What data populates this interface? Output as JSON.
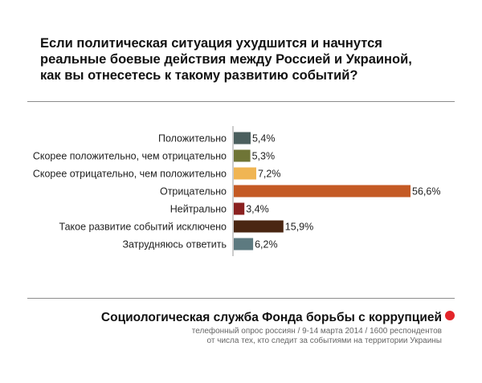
{
  "title_lines": [
    "Если политическая ситуация ухудшится и начнутся",
    "реальные боевые действия между Россией и Украиной,",
    "как вы отнесетесь к такому развитию событий?"
  ],
  "chart_data": {
    "type": "bar",
    "orientation": "horizontal",
    "title": "Если политическая ситуация ухудшится и начнутся реальные боевые действия между Россией и Украиной, как вы отнесетесь к такому развитию событий?",
    "categories": [
      "Положительно",
      "Скорее положительно, чем отрицательно",
      "Скорее отрицательно, чем положительно",
      "Отрицательно",
      "Нейтрально",
      "Такое развитие событий исключено",
      "Затрудняюсь ответить"
    ],
    "values": [
      5.4,
      5.3,
      7.2,
      56.6,
      3.4,
      15.9,
      6.2
    ],
    "value_labels": [
      "5,4%",
      "5,3%",
      "7,2%",
      "56,6%",
      "3,4%",
      "15,9%",
      "6,2%"
    ],
    "colors": [
      "#4b5f5e",
      "#6f7536",
      "#f0b553",
      "#c45a24",
      "#8a2120",
      "#4a2612",
      "#5d7a80"
    ],
    "unit": "%",
    "xlim": [
      0,
      60
    ],
    "grid": false,
    "legend": "none"
  },
  "footer": {
    "title": "Социологическая служба Фонда борьбы с коррупцией",
    "accent_color": "#e4252a",
    "note_lines": [
      "телефонный опрос россиян / 9-14 марта 2014 / 1600 респондентов",
      "от числа тех, кто следит за событиями на территории Украины"
    ]
  }
}
